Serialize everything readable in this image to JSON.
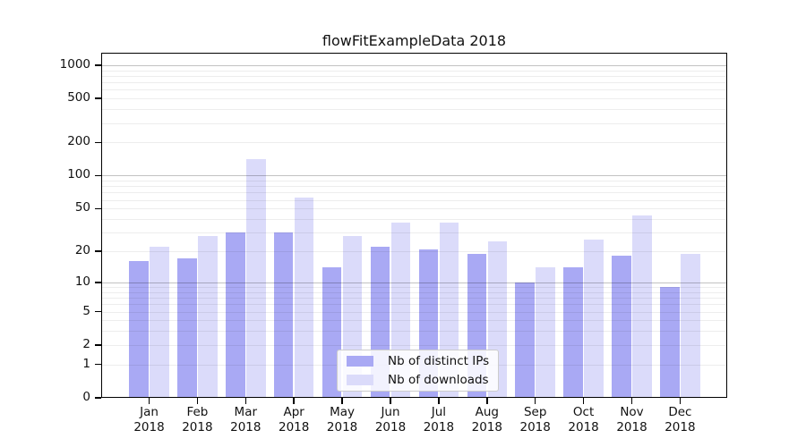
{
  "chart_data": {
    "type": "bar",
    "title": "flowFitExampleData 2018",
    "year": "2018",
    "months": [
      "Jan",
      "Feb",
      "Mar",
      "Apr",
      "May",
      "Jun",
      "Jul",
      "Aug",
      "Sep",
      "Oct",
      "Nov",
      "Dec"
    ],
    "categories": [
      "Jan 2018",
      "Feb 2018",
      "Mar 2018",
      "Apr 2018",
      "May 2018",
      "Jun 2018",
      "Jul 2018",
      "Aug 2018",
      "Sep 2018",
      "Oct 2018",
      "Nov 2018",
      "Dec 2018"
    ],
    "series": [
      {
        "name": "Nb of distinct IPs",
        "color": "#a9a9f4",
        "values": [
          16,
          17,
          30,
          30,
          14,
          22,
          21,
          19,
          10,
          14,
          18,
          9
        ]
      },
      {
        "name": "Nb of downloads",
        "color": "#dbdbfa",
        "values": [
          22,
          28,
          140,
          63,
          28,
          37,
          37,
          25,
          14,
          26,
          43,
          19
        ]
      }
    ],
    "xlabel": "",
    "ylabel": "",
    "yscale": "log1p",
    "ylim": [
      0,
      1300
    ],
    "ytick_values": [
      0,
      1,
      2,
      5,
      10,
      20,
      50,
      100,
      200,
      500,
      1000
    ],
    "ytick_labels": [
      "0",
      "1",
      "2",
      "5",
      "10",
      "20",
      "50",
      "100",
      "200",
      "500",
      "1000"
    ],
    "grid": "on",
    "legend_position": "lower-center"
  }
}
